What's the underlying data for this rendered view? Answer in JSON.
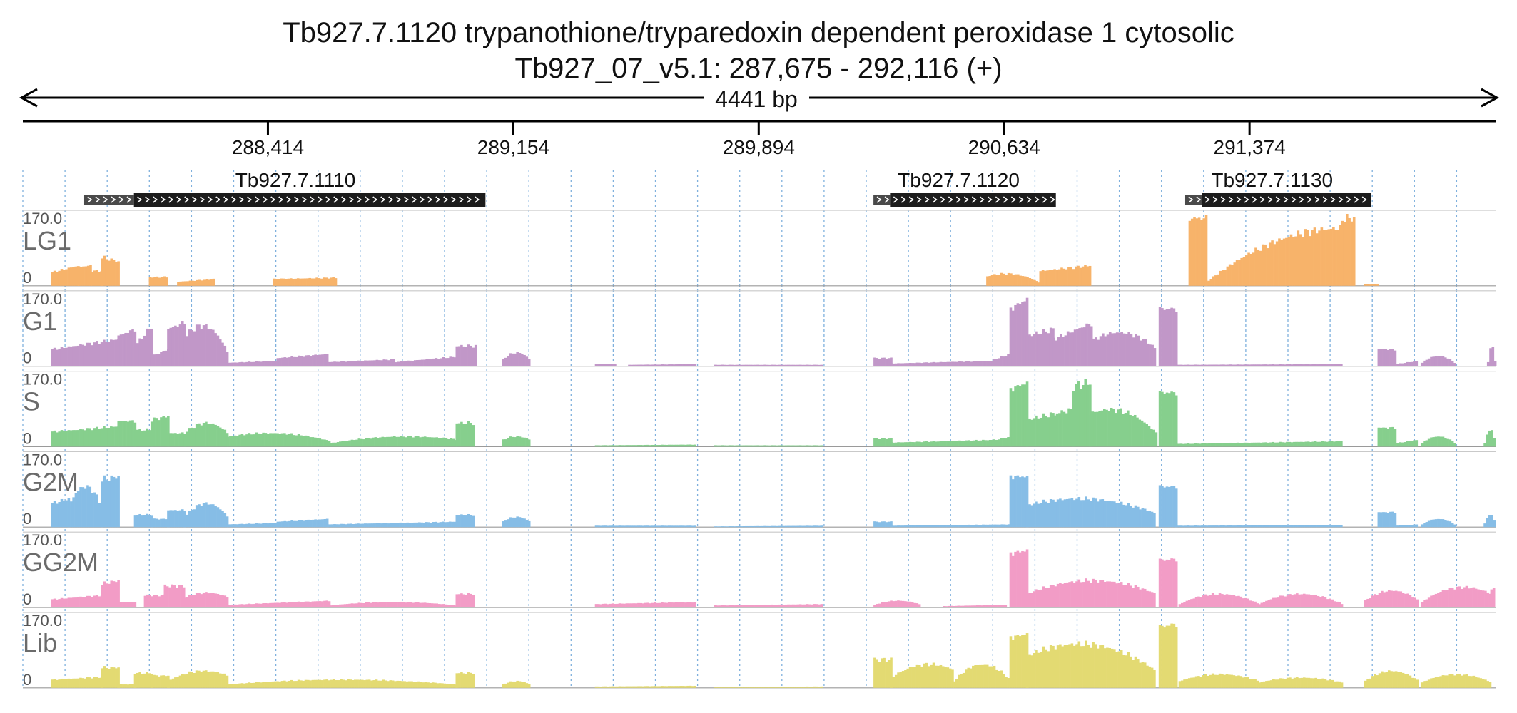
{
  "header": {
    "gene_title": "Tb927.7.1120  trypanothione/tryparedoxin dependent peroxidase 1  cytosolic",
    "locus": "Tb927_07_v5.1: 287,675 - 292,116 (+)",
    "span_label": "4441 bp"
  },
  "ruler": {
    "start": 287675,
    "end": 292116,
    "ticks": [
      {
        "pos": 288414,
        "label": "288,414"
      },
      {
        "pos": 289154,
        "label": "289,154"
      },
      {
        "pos": 289894,
        "label": "289,894"
      },
      {
        "pos": 290634,
        "label": "290,634"
      },
      {
        "pos": 291374,
        "label": "291,374"
      }
    ]
  },
  "genes": [
    {
      "name": "Tb927.7.1110",
      "utr_start": 287860,
      "cds_start": 288010,
      "end": 289070
    },
    {
      "name": "Tb927.7.1120",
      "utr_start": 290240,
      "cds_start": 290290,
      "end": 290790
    },
    {
      "name": "Tb927.7.1130",
      "utr_start": 291180,
      "cds_start": 291230,
      "end": 291740
    }
  ],
  "tracks": [
    {
      "name": "LG1",
      "max_label": "170.0",
      "min_label": "0",
      "color": "#f7b36a",
      "segments": [
        [
          287760,
          287840,
          0.2,
          0.3,
          0.0
        ],
        [
          287840,
          287880,
          0.28,
          0.3,
          0.0
        ],
        [
          287880,
          287910,
          0.22,
          0.22,
          0.0
        ],
        [
          287910,
          287960,
          0.42,
          0.36,
          0.0
        ],
        [
          288055,
          288105,
          0.13,
          0.13,
          0.0
        ],
        [
          288140,
          288250,
          0.06,
          0.1,
          0.0
        ],
        [
          288430,
          288620,
          0.1,
          0.12,
          0.0
        ],
        [
          290580,
          290740,
          0.04,
          0.18,
          0.35
        ],
        [
          290740,
          290890,
          0.22,
          0.3,
          0.0
        ],
        [
          291190,
          291240,
          1.0,
          1.0,
          0.0
        ],
        [
          291240,
          291650,
          0.05,
          0.85,
          1.0
        ],
        [
          291650,
          291690,
          1.0,
          1.0,
          0.0
        ],
        [
          291720,
          291760,
          0.02,
          0.02,
          0.0
        ]
      ]
    },
    {
      "name": "G1",
      "max_label": "170.0",
      "min_label": "0",
      "color": "#c197c8",
      "segments": [
        [
          287760,
          287960,
          0.25,
          0.4,
          0.0
        ],
        [
          287960,
          288010,
          0.45,
          0.55,
          0.0
        ],
        [
          288010,
          288060,
          0.3,
          0.6,
          0.0
        ],
        [
          288060,
          288110,
          0.15,
          0.25,
          0.0
        ],
        [
          288110,
          288160,
          0.55,
          0.65,
          0.0
        ],
        [
          288160,
          288290,
          0.2,
          0.6,
          0.4
        ],
        [
          288290,
          288440,
          0.05,
          0.08,
          0.0
        ],
        [
          288440,
          288590,
          0.12,
          0.18,
          0.0
        ],
        [
          288590,
          288790,
          0.06,
          0.1,
          0.0
        ],
        [
          288790,
          288980,
          0.06,
          0.14,
          0.0
        ],
        [
          288980,
          289040,
          0.3,
          0.3,
          0.0
        ],
        [
          289120,
          289200,
          0.1,
          0.2,
          0.5
        ],
        [
          289400,
          289460,
          0.03,
          0.03,
          0.0
        ],
        [
          289500,
          289700,
          0.02,
          0.03,
          0.0
        ],
        [
          289760,
          290080,
          0.02,
          0.02,
          0.0
        ],
        [
          290240,
          290290,
          0.12,
          0.12,
          0.0
        ],
        [
          290290,
          290600,
          0.04,
          0.08,
          0.0
        ],
        [
          290600,
          290650,
          0.1,
          0.18,
          0.0
        ],
        [
          290650,
          290700,
          0.85,
          1.0,
          0.0
        ],
        [
          290700,
          290780,
          0.45,
          0.55,
          0.0
        ],
        [
          290780,
          290900,
          0.4,
          0.65,
          0.0
        ],
        [
          290900,
          291090,
          0.25,
          0.5,
          0.4
        ],
        [
          291100,
          291150,
          0.85,
          0.85,
          0.0
        ],
        [
          291150,
          291650,
          0.02,
          0.03,
          0.0
        ],
        [
          291760,
          291810,
          0.25,
          0.25,
          0.0
        ],
        [
          291810,
          291880,
          0.03,
          0.08,
          0.0
        ],
        [
          291890,
          291990,
          0.05,
          0.15,
          0.5
        ],
        [
          292090,
          292190,
          0.06,
          0.3,
          0.5
        ],
        [
          292220,
          292320,
          0.05,
          0.1,
          0.0
        ],
        [
          292320,
          292350,
          0.35,
          0.35,
          0.0
        ]
      ]
    },
    {
      "name": "S",
      "max_label": "170.0",
      "min_label": "0",
      "color": "#86cf8d",
      "segments": [
        [
          287760,
          287960,
          0.22,
          0.3,
          0.0
        ],
        [
          287960,
          288010,
          0.38,
          0.38,
          0.0
        ],
        [
          288010,
          288060,
          0.25,
          0.25,
          0.0
        ],
        [
          288060,
          288110,
          0.4,
          0.45,
          0.0
        ],
        [
          288110,
          288160,
          0.2,
          0.2,
          0.0
        ],
        [
          288160,
          288290,
          0.2,
          0.35,
          0.5
        ],
        [
          288290,
          288600,
          0.08,
          0.2,
          0.4
        ],
        [
          288600,
          288980,
          0.05,
          0.15,
          0.6
        ],
        [
          288980,
          289030,
          0.35,
          0.35,
          0.0
        ],
        [
          289120,
          289200,
          0.1,
          0.15,
          0.5
        ],
        [
          289400,
          289700,
          0.02,
          0.03,
          0.0
        ],
        [
          289760,
          290080,
          0.02,
          0.02,
          0.0
        ],
        [
          290240,
          290290,
          0.12,
          0.12,
          0.0
        ],
        [
          290290,
          290600,
          0.06,
          0.1,
          0.0
        ],
        [
          290600,
          290650,
          0.1,
          0.14,
          0.0
        ],
        [
          290650,
          290700,
          0.85,
          0.95,
          0.0
        ],
        [
          290700,
          290790,
          0.4,
          0.5,
          0.0
        ],
        [
          290790,
          290840,
          0.5,
          0.55,
          0.0
        ],
        [
          290840,
          290890,
          0.9,
          0.95,
          0.0
        ],
        [
          290890,
          291090,
          0.2,
          0.55,
          0.3
        ],
        [
          291100,
          291150,
          0.8,
          0.8,
          0.0
        ],
        [
          291150,
          291650,
          0.04,
          0.08,
          0.0
        ],
        [
          291760,
          291810,
          0.28,
          0.28,
          0.0
        ],
        [
          291810,
          291880,
          0.05,
          0.1,
          0.0
        ],
        [
          291890,
          291990,
          0.05,
          0.15,
          0.5
        ],
        [
          292080,
          292180,
          0.05,
          0.25,
          0.5
        ],
        [
          292220,
          292320,
          0.05,
          0.1,
          0.0
        ],
        [
          292320,
          292350,
          0.3,
          0.3,
          0.0
        ]
      ]
    },
    {
      "name": "G2M",
      "max_label": "170.0",
      "min_label": "0",
      "color": "#86bde6",
      "segments": [
        [
          287760,
          287810,
          0.35,
          0.42,
          0.0
        ],
        [
          287810,
          287910,
          0.3,
          0.6,
          0.5
        ],
        [
          287910,
          287960,
          0.7,
          0.75,
          0.0
        ],
        [
          288010,
          288060,
          0.18,
          0.18,
          0.0
        ],
        [
          288060,
          288110,
          0.12,
          0.12,
          0.0
        ],
        [
          288110,
          288160,
          0.25,
          0.25,
          0.0
        ],
        [
          288160,
          288290,
          0.15,
          0.35,
          0.5
        ],
        [
          288290,
          288440,
          0.04,
          0.06,
          0.0
        ],
        [
          288440,
          288590,
          0.08,
          0.12,
          0.0
        ],
        [
          288590,
          288980,
          0.04,
          0.08,
          0.0
        ],
        [
          288980,
          289030,
          0.18,
          0.18,
          0.0
        ],
        [
          289120,
          289200,
          0.08,
          0.15,
          0.5
        ],
        [
          289400,
          289700,
          0.02,
          0.02,
          0.0
        ],
        [
          289760,
          290080,
          0.01,
          0.02,
          0.0
        ],
        [
          290240,
          290290,
          0.08,
          0.08,
          0.0
        ],
        [
          290290,
          290650,
          0.02,
          0.04,
          0.0
        ],
        [
          290650,
          290700,
          0.75,
          0.75,
          0.0
        ],
        [
          290700,
          291090,
          0.2,
          0.42,
          0.4
        ],
        [
          291100,
          291150,
          0.6,
          0.6,
          0.0
        ],
        [
          291150,
          291650,
          0.02,
          0.03,
          0.0
        ],
        [
          291760,
          291810,
          0.22,
          0.22,
          0.0
        ],
        [
          291810,
          291880,
          0.02,
          0.04,
          0.0
        ],
        [
          291890,
          291990,
          0.04,
          0.12,
          0.5
        ],
        [
          292080,
          292180,
          0.05,
          0.18,
          0.5
        ],
        [
          292220,
          292320,
          0.04,
          0.08,
          0.0
        ],
        [
          292320,
          292350,
          0.28,
          0.28,
          0.0
        ]
      ]
    },
    {
      "name": "GG2M",
      "max_label": "170.0",
      "min_label": "0",
      "color": "#f29cc6",
      "segments": [
        [
          287760,
          287910,
          0.12,
          0.18,
          0.0
        ],
        [
          287910,
          287960,
          0.35,
          0.4,
          0.0
        ],
        [
          287960,
          288010,
          0.08,
          0.08,
          0.0
        ],
        [
          288040,
          288100,
          0.18,
          0.18,
          0.0
        ],
        [
          288100,
          288160,
          0.32,
          0.32,
          0.0
        ],
        [
          288160,
          288290,
          0.15,
          0.22,
          0.5
        ],
        [
          288290,
          288600,
          0.04,
          0.1,
          0.0
        ],
        [
          288600,
          288980,
          0.03,
          0.08,
          0.5
        ],
        [
          288980,
          289030,
          0.2,
          0.2,
          0.0
        ],
        [
          289400,
          289700,
          0.05,
          0.08,
          0.0
        ],
        [
          289760,
          290080,
          0.03,
          0.05,
          0.0
        ],
        [
          290240,
          290380,
          0.04,
          0.1,
          0.5
        ],
        [
          290450,
          290640,
          0.02,
          0.04,
          0.0
        ],
        [
          290650,
          290700,
          0.8,
          0.85,
          0.0
        ],
        [
          290700,
          291090,
          0.2,
          0.4,
          0.5
        ],
        [
          291100,
          291150,
          0.7,
          0.72,
          0.0
        ],
        [
          291160,
          291400,
          0.05,
          0.2,
          0.5
        ],
        [
          291400,
          291650,
          0.05,
          0.2,
          0.5
        ],
        [
          291720,
          291880,
          0.1,
          0.25,
          0.5
        ],
        [
          291890,
          292100,
          0.08,
          0.3,
          0.6
        ],
        [
          292100,
          292200,
          0.25,
          0.33,
          0.0
        ],
        [
          292200,
          292320,
          0.03,
          0.05,
          0.0
        ],
        [
          292320,
          292350,
          0.55,
          0.55,
          0.0
        ]
      ]
    },
    {
      "name": "Lib",
      "max_label": "170.0",
      "min_label": "0",
      "color": "#e3da72",
      "segments": [
        [
          287760,
          287910,
          0.12,
          0.16,
          0.0
        ],
        [
          287910,
          287960,
          0.3,
          0.3,
          0.0
        ],
        [
          287960,
          288010,
          0.05,
          0.05,
          0.0
        ],
        [
          288010,
          288060,
          0.22,
          0.22,
          0.0
        ],
        [
          288060,
          288110,
          0.18,
          0.18,
          0.0
        ],
        [
          288110,
          288290,
          0.1,
          0.25,
          0.6
        ],
        [
          288290,
          288980,
          0.05,
          0.12,
          0.5
        ],
        [
          288980,
          289030,
          0.22,
          0.22,
          0.0
        ],
        [
          289120,
          289200,
          0.05,
          0.1,
          0.5
        ],
        [
          289400,
          289700,
          0.02,
          0.03,
          0.0
        ],
        [
          289760,
          290080,
          0.01,
          0.02,
          0.0
        ],
        [
          290240,
          290290,
          0.42,
          0.42,
          0.0
        ],
        [
          290290,
          290480,
          0.15,
          0.35,
          0.6
        ],
        [
          290480,
          290650,
          0.1,
          0.35,
          0.5
        ],
        [
          290650,
          290700,
          0.75,
          0.8,
          0.0
        ],
        [
          290700,
          291090,
          0.25,
          0.65,
          0.4
        ],
        [
          291100,
          291150,
          0.9,
          0.95,
          0.0
        ],
        [
          291160,
          291400,
          0.1,
          0.2,
          0.5
        ],
        [
          291400,
          291650,
          0.08,
          0.15,
          0.5
        ],
        [
          291720,
          291880,
          0.1,
          0.25,
          0.5
        ],
        [
          291890,
          292100,
          0.08,
          0.2,
          0.5
        ],
        [
          292220,
          292320,
          0.04,
          0.08,
          0.0
        ],
        [
          292320,
          292350,
          0.45,
          0.45,
          0.0
        ]
      ]
    }
  ]
}
